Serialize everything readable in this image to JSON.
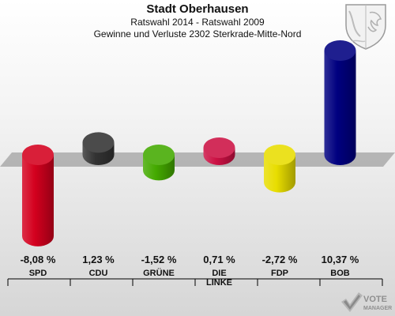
{
  "header": {
    "title": "Stadt Oberhausen",
    "subtitle1": "Ratswahl 2014 - Ratswahl 2009",
    "subtitle2": "Gewinne und Verluste 2302 Sterkrade-Mitte-Nord"
  },
  "chart_data": {
    "type": "bar",
    "unit": "%",
    "categories": [
      "SPD",
      "CDU",
      "GRÜNE",
      "DIE LINKE",
      "FDP",
      "BOB"
    ],
    "category_lines": [
      [
        "SPD"
      ],
      [
        "CDU"
      ],
      [
        "GRÜNE"
      ],
      [
        "DIE",
        "LINKE"
      ],
      [
        "FDP"
      ],
      [
        "BOB"
      ]
    ],
    "values": [
      -8.08,
      1.23,
      -1.52,
      0.71,
      -2.72,
      10.37
    ],
    "value_labels": [
      "-8,08 %",
      "1,23 %",
      "-1,52 %",
      "0,71 %",
      "-2,72 %",
      "10,37 %"
    ],
    "colors": [
      "#d4001e",
      "#333333",
      "#44aa00",
      "#cc1144",
      "#e8dd00",
      "#000080"
    ],
    "ylim": [
      -8.08,
      10.37
    ]
  },
  "branding": {
    "logo_line1": "VOTE",
    "logo_line2": "MANAGER"
  }
}
